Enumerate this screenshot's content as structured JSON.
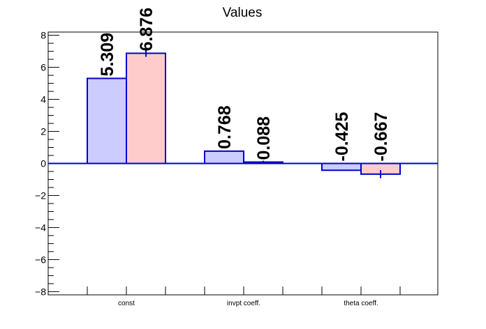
{
  "chart_data": {
    "type": "bar",
    "title": "Values",
    "xlabel": "",
    "ylabel": "",
    "categories": [
      "const",
      "invpt coeff.",
      "theta coeff."
    ],
    "series": [
      {
        "values": [
          5.309,
          0.768,
          -0.425
        ],
        "errors": [
          0,
          0,
          0
        ],
        "fill": "#ccccff",
        "edge": "#0000cc"
      },
      {
        "values": [
          6.876,
          0.088,
          -0.667
        ],
        "errors": [
          0.22,
          0.08,
          0.25
        ],
        "fill": "#ffcccc",
        "edge": "#0000cc"
      }
    ],
    "data_labels": [
      [
        "5.309",
        "0.768",
        "-0.425"
      ],
      [
        "6.876",
        "0.088",
        "-0.667"
      ]
    ],
    "yticks": [
      -8,
      -6,
      -4,
      -2,
      0,
      2,
      4,
      6,
      8
    ],
    "yticklabels": [
      "−8",
      "−6",
      "−4",
      "−2",
      "0",
      "2",
      "4",
      "6",
      "8"
    ],
    "ylim": [
      -8.2,
      8.2
    ],
    "grid": false,
    "legend": "none",
    "zero_line_color": "#0000cc"
  }
}
